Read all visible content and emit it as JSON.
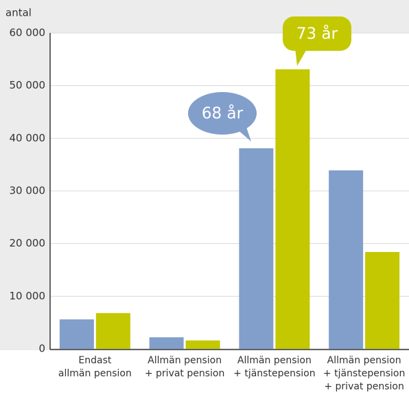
{
  "chart_data": {
    "type": "bar",
    "y_axis_label": "antal",
    "categories": [
      [
        "Endast",
        "allmän pension"
      ],
      [
        "Allmän pension",
        "+ privat pension"
      ],
      [
        "Allmän pension",
        "+ tjänstepension"
      ],
      [
        "Allmän pension",
        "+ tjänstepension",
        "+ privat pension"
      ]
    ],
    "series": [
      {
        "name": "68 år",
        "color": "#829fcb",
        "values": [
          5600,
          2200,
          38100,
          33900
        ]
      },
      {
        "name": "73 år",
        "color": "#c3c800",
        "values": [
          6800,
          1600,
          53100,
          18400
        ]
      }
    ],
    "ylim": [
      0,
      60000
    ],
    "yticks": [
      0,
      {
        "value": 10000,
        "label": "10 000"
      },
      {
        "value": 20000,
        "label": "20 000"
      },
      {
        "value": 30000,
        "label": "30 000"
      },
      {
        "value": 40000,
        "label": "40 000"
      },
      {
        "value": 50000,
        "label": "50 000"
      },
      {
        "value": 60000,
        "label": "60 000"
      }
    ],
    "grid": true
  }
}
